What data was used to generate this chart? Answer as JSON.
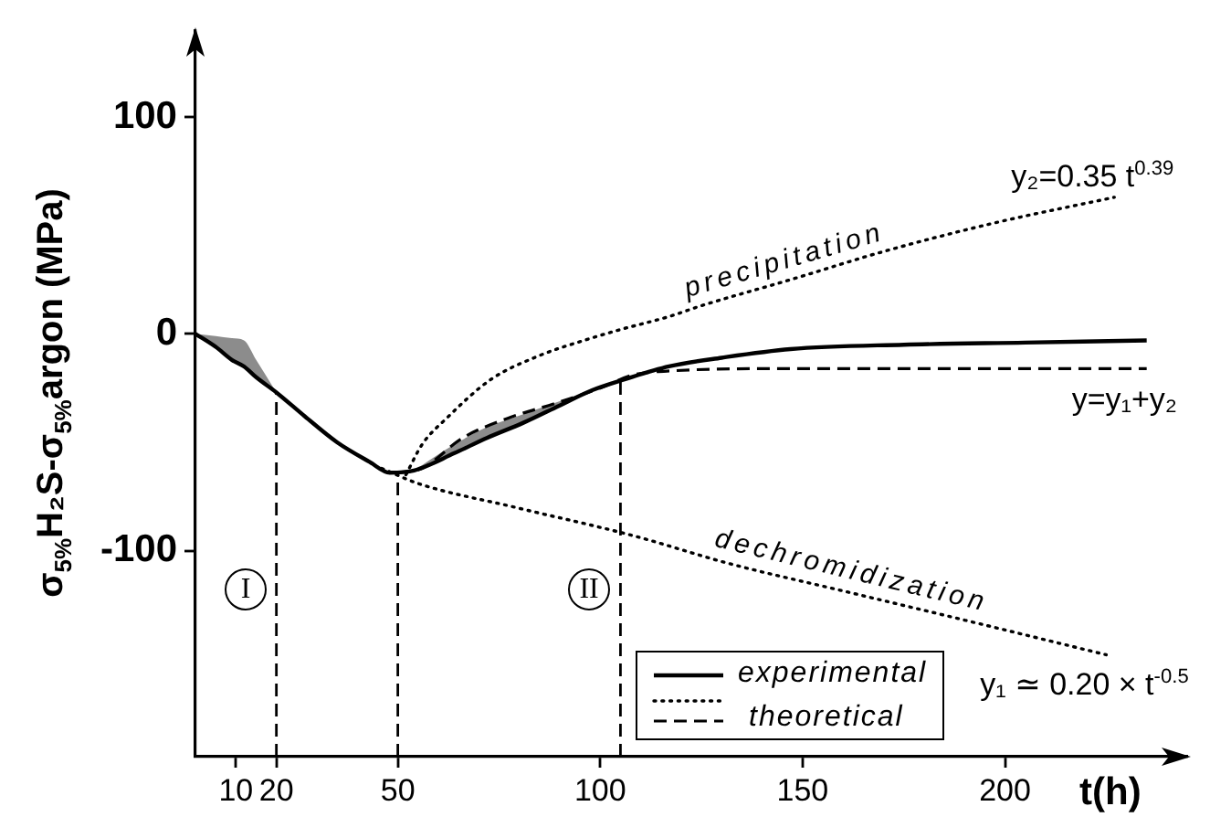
{
  "chart_data": {
    "type": "line",
    "xlabel": "t(h)",
    "ylabel": "σ$_{5%}$H₂S-σ$_{5%}$argon (MPa)",
    "xlim": [
      0,
      245
    ],
    "ylim": [
      -195,
      140
    ],
    "xticks": [
      10,
      20,
      50,
      100,
      150,
      200
    ],
    "yticks": [
      -100,
      0,
      100
    ],
    "legend": "bottom right",
    "marker": "none",
    "series": [
      {
        "name": "experimental",
        "color": "#000000",
        "line_style": "solid",
        "x": [
          0,
          5,
          9,
          12,
          15,
          20,
          27,
          35,
          43,
          48,
          54,
          64,
          72,
          81,
          90,
          98,
          106,
          117,
          130,
          147,
          175,
          205,
          235
        ],
        "values": [
          0,
          -6,
          -12,
          -15,
          -20,
          -27,
          -38,
          -50,
          -59,
          -64,
          -63,
          -55,
          -48,
          -41,
          -33,
          -26,
          -21,
          -15,
          -11,
          -7,
          -5,
          -4,
          -3
        ],
        "lower": [
          0,
          -6,
          -12,
          -15,
          -20,
          -27,
          null,
          null,
          null,
          null,
          -63,
          -55,
          -48,
          -41,
          -33,
          -26,
          null,
          null,
          null,
          null,
          null,
          null,
          null
        ],
        "upper": [
          0,
          -1,
          -2,
          -3,
          -12,
          -27,
          null,
          null,
          null,
          null,
          -63,
          -51,
          -43,
          -37,
          -31,
          -26,
          null,
          null,
          null,
          null,
          null,
          null,
          null
        ]
      },
      {
        "color": "#000000",
        "line_style": "dotted",
        "x": [
          52,
          56,
          62,
          73,
          85,
          96,
          105,
          117,
          125,
          147,
          170,
          197,
          227
        ],
        "values": [
          -65,
          -51,
          -39,
          -21,
          -10,
          -3,
          2,
          8,
          13,
          25,
          38,
          51,
          63
        ]
      },
      {
        "color": "#000000",
        "line_style": "dotted",
        "x": [
          46,
          55,
          79,
          108,
          132,
          161,
          190,
          225
        ],
        "values": [
          -62,
          -69,
          -80,
          -93,
          -106,
          -119,
          -132,
          -148
        ]
      },
      {
        "name": "theoretical",
        "color": "#000000",
        "line_style": "dashed",
        "x": [
          50,
          56,
          66,
          77,
          89,
          100,
          108,
          118,
          147,
          190,
          235
        ],
        "values": [
          -64,
          -62,
          -48,
          -39,
          -32,
          -25,
          -19,
          -17,
          -16,
          -16,
          -16
        ]
      }
    ],
    "ref_lines": [
      {
        "axis": "x",
        "value": 20,
        "label": "I",
        "line_style": "dashed",
        "color": "#000000"
      },
      {
        "axis": "x",
        "value": 50,
        "line_style": "dashed",
        "color": "#000000"
      },
      {
        "axis": "x",
        "value": 105,
        "label": "II",
        "line_style": "dashed",
        "color": "#000000"
      }
    ],
    "annotations": [
      {
        "text": "precipitation",
        "x": 147,
        "y": 25
      },
      {
        "text": "dechromidization",
        "x": 161,
        "y": -119
      },
      {
        "text": "y₂=0.35 t$^{0.39}$",
        "x": 227,
        "y": 63
      },
      {
        "text": "y=y₁+y₂",
        "x": 235,
        "y": -16
      },
      {
        "text": "y₁ ≃ 0.20 × t$^{-0.5}$",
        "x": 225,
        "y": -148
      }
    ]
  }
}
